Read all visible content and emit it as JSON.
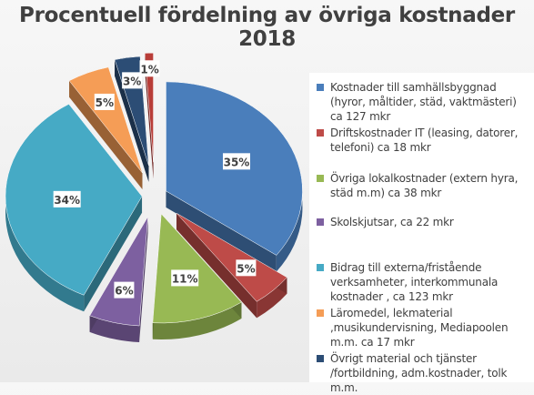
{
  "chart_data": {
    "type": "pie",
    "title": "Procentuell fördelning av övriga kostnader 2018",
    "slices": [
      {
        "label": "Kostnader till samhällsbyggnad (hyror, måltider, städ, vaktmästeri) ca 127 mkr",
        "value": 35,
        "pct_label": "35%",
        "color": "#4a7ebb"
      },
      {
        "label": "Driftskostnader IT (leasing, datorer, telefoni) ca 18 mkr",
        "value": 5,
        "pct_label": "5%",
        "color": "#be4b48"
      },
      {
        "label": "Övriga lokalkostnader (extern hyra, städ m.m) ca 38 mkr",
        "value": 11,
        "pct_label": "11%",
        "color": "#98b954"
      },
      {
        "label": "Skolskjutsar, ca 22 mkr",
        "value": 6,
        "pct_label": "6%",
        "color": "#7d60a0"
      },
      {
        "label": "Bidrag till externa/fristående verksamheter, interkommunala kostnader , ca 123 mkr",
        "value": 34,
        "pct_label": "34%",
        "color": "#46aac5"
      },
      {
        "label": "Läromedel, lekmaterial ,musikundervisning, Mediapoolen m.m. ca 17 mkr",
        "value": 5,
        "pct_label": "5%",
        "color": "#f59d56"
      },
      {
        "label": "Övrigt material och tjänster /fortbildning, adm.kostnader, tolk m.m.",
        "value": 3,
        "pct_label": "3%",
        "color": "#2c4d75"
      },
      {
        "label": "",
        "value": 1,
        "pct_label": "1%",
        "color": "#b83d38"
      }
    ],
    "legend_position": "right"
  }
}
